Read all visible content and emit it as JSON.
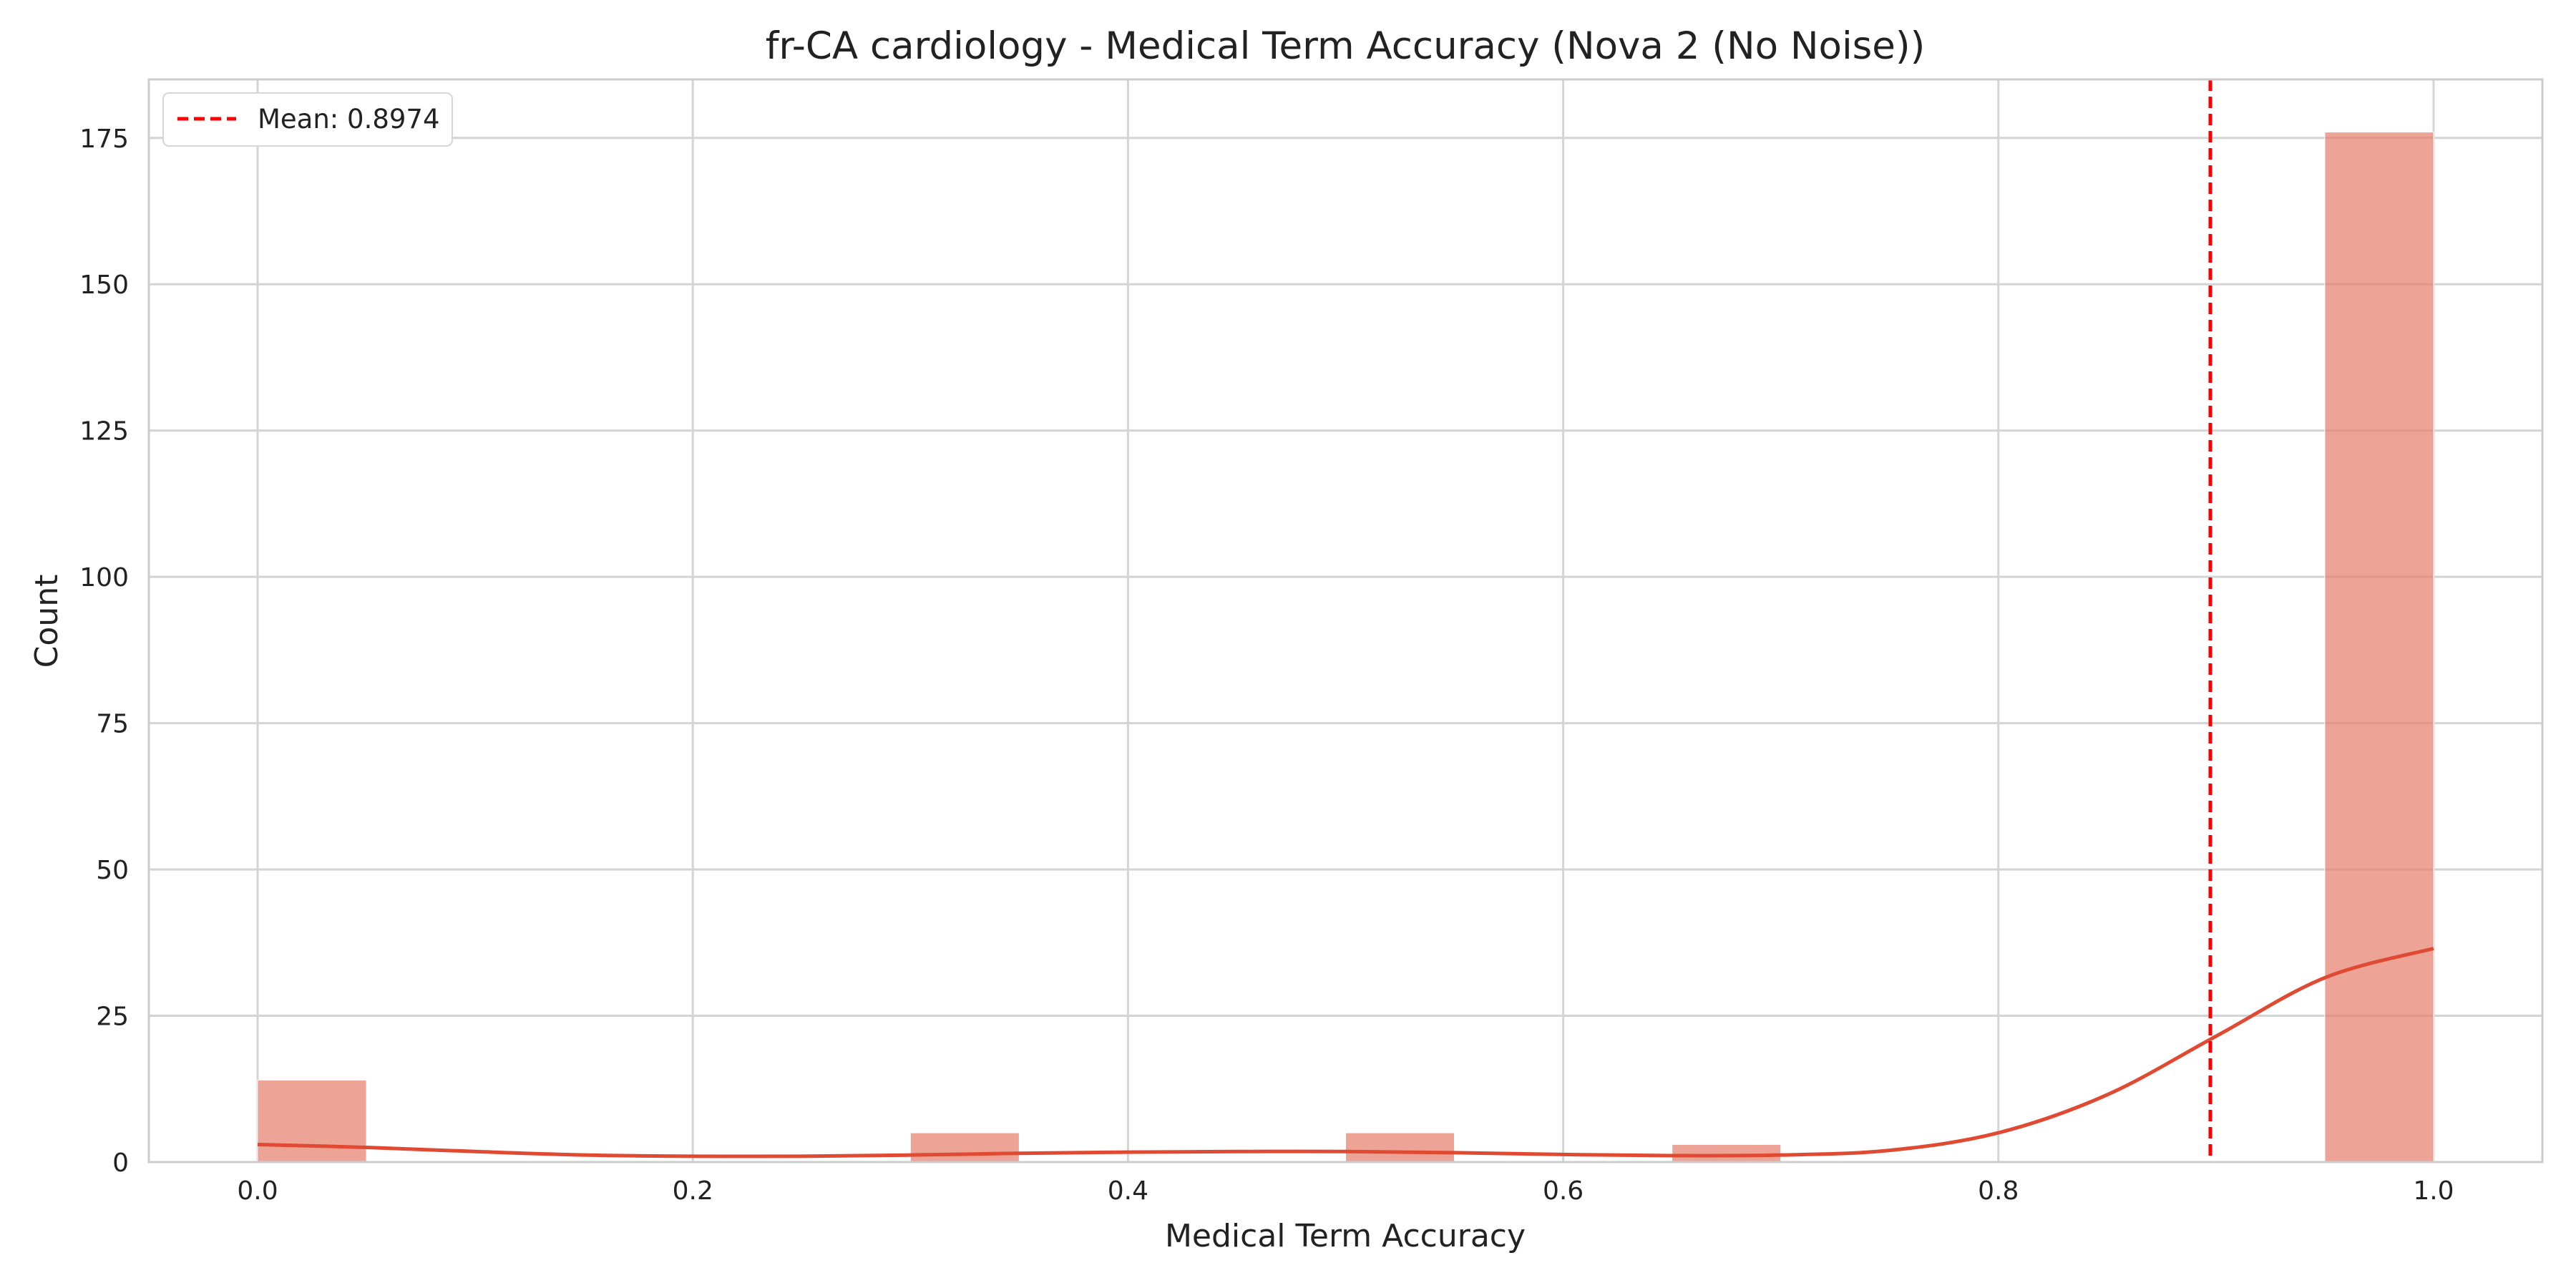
{
  "chart_data": {
    "type": "bar",
    "title": "fr-CA cardiology - Medical Term Accuracy (Nova 2 (No Noise))",
    "xlabel": "Medical Term Accuracy",
    "ylabel": "Count",
    "xlim": [
      -0.05,
      1.05
    ],
    "ylim": [
      0,
      185
    ],
    "xticks": [
      0.0,
      0.2,
      0.4,
      0.6,
      0.8,
      1.0
    ],
    "xtick_labels": [
      "0.0",
      "0.2",
      "0.4",
      "0.6",
      "0.8",
      "1.0"
    ],
    "yticks": [
      0,
      25,
      50,
      75,
      100,
      125,
      150,
      175
    ],
    "ytick_labels": [
      "0",
      "25",
      "50",
      "75",
      "100",
      "125",
      "150",
      "175"
    ],
    "grid": true,
    "legend_position": "top-left",
    "bar_color": "#e8806f",
    "bars": [
      {
        "x0": 0.0,
        "x1": 0.05,
        "count": 14
      },
      {
        "x0": 0.3,
        "x1": 0.35,
        "count": 5
      },
      {
        "x0": 0.5,
        "x1": 0.55,
        "count": 5
      },
      {
        "x0": 0.65,
        "x1": 0.7,
        "count": 3
      },
      {
        "x0": 0.95,
        "x1": 1.0,
        "count": 176
      }
    ],
    "kde": {
      "color": "#e04a32",
      "x": [
        0.0,
        0.05,
        0.1,
        0.15,
        0.2,
        0.25,
        0.3,
        0.35,
        0.4,
        0.45,
        0.5,
        0.55,
        0.6,
        0.65,
        0.7,
        0.75,
        0.8,
        0.85,
        0.9,
        0.95,
        1.0
      ],
      "y": [
        3.0,
        2.5,
        1.8,
        1.2,
        1.0,
        1.0,
        1.2,
        1.5,
        1.7,
        1.8,
        1.8,
        1.6,
        1.3,
        1.1,
        1.2,
        2.0,
        5.0,
        11.5,
        21.5,
        31.5,
        36.5
      ]
    },
    "mean_line": {
      "value": 0.8974,
      "label": "Mean: 0.8974",
      "color": "#ff0000"
    }
  }
}
